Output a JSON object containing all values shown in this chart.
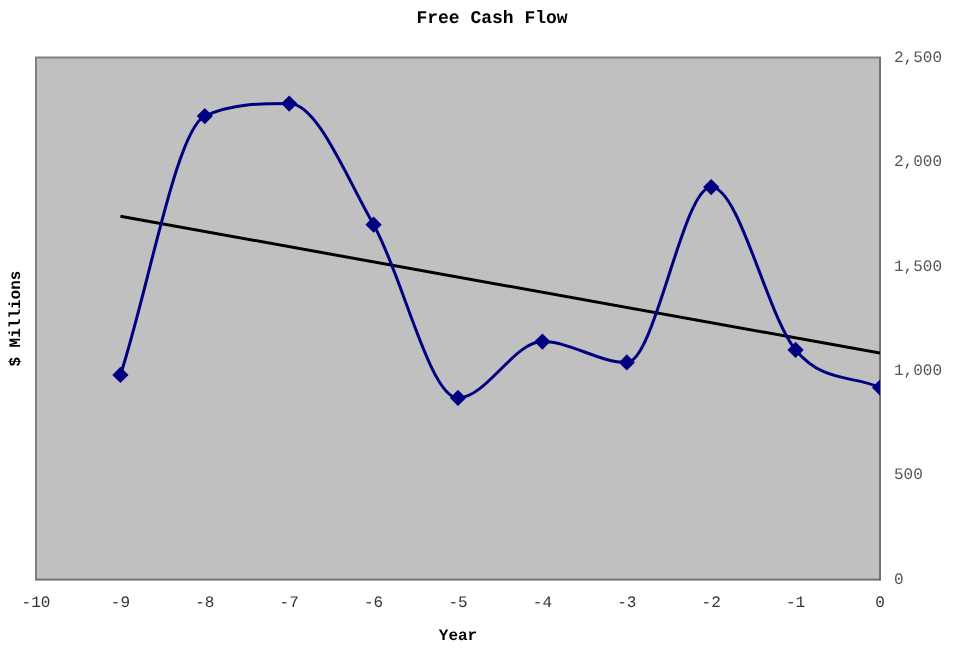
{
  "chart_data": {
    "type": "line",
    "title": "Free Cash Flow",
    "xlabel": "Year",
    "ylabel": "$ Millions",
    "x": [
      -9,
      -8,
      -7,
      -6,
      -5,
      -4,
      -3,
      -2,
      -1,
      0
    ],
    "series": [
      {
        "color": "#000080",
        "values": [
          980,
          2220,
          2280,
          1700,
          870,
          1140,
          1040,
          1880,
          1100,
          920
        ]
      },
      {
        "type": "line",
        "color": "#000000",
        "x": [
          -9,
          0
        ],
        "values": [
          1740,
          1085
        ],
        "marker": "none"
      }
    ],
    "xlim": [
      -10,
      0
    ],
    "xticks": [
      -10,
      -9,
      -8,
      -7,
      -6,
      -5,
      -4,
      -3,
      -2,
      -1,
      0
    ],
    "ylim": [
      0,
      2500
    ],
    "yticks": [
      {
        "value": 0,
        "label": "0"
      },
      {
        "value": 500,
        "label": "500"
      },
      {
        "value": 1000,
        "label": "1,000"
      },
      {
        "value": 1500,
        "label": "1,500"
      },
      {
        "value": 2000,
        "label": "2,000"
      },
      {
        "value": 2500,
        "label": "2,500"
      }
    ],
    "marker": "diamond",
    "grid": false,
    "legend": false
  }
}
